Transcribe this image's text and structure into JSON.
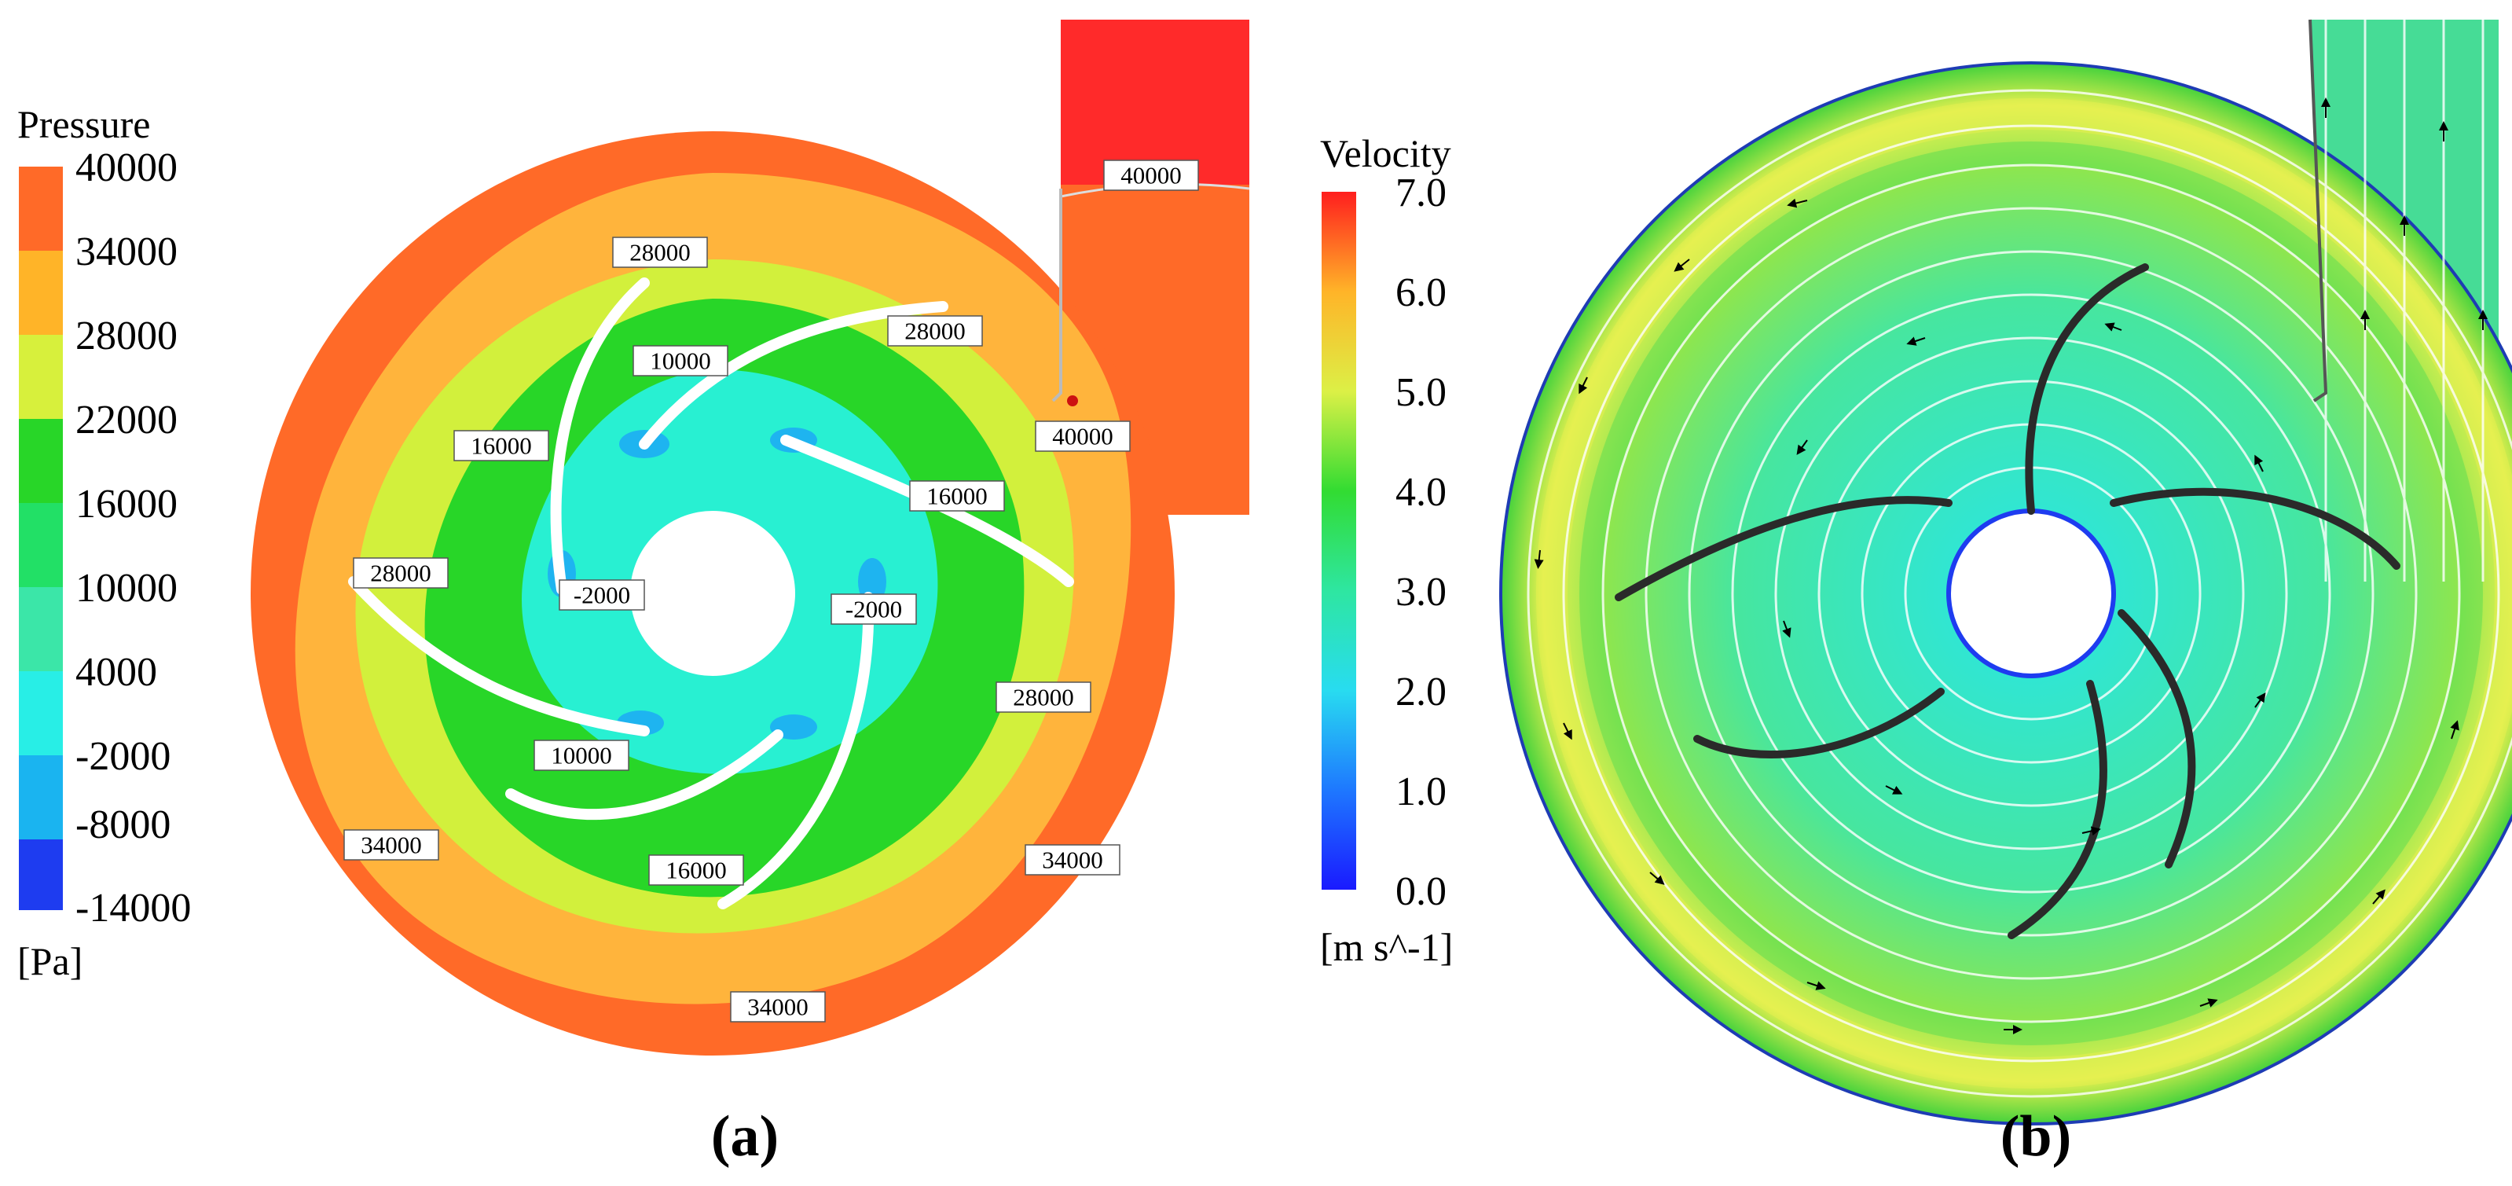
{
  "panel_a": {
    "caption": "(a)",
    "legend": {
      "title": "Pressure",
      "unit": "[Pa]",
      "ticks": [
        "40000",
        "34000",
        "28000",
        "22000",
        "16000",
        "10000",
        "4000",
        "-2000",
        "-8000",
        "-14000"
      ],
      "colors": [
        "#ff3a1e",
        "#ffb21e",
        "#e6f53c",
        "#33d61e",
        "#1ee61e",
        "#3be6a0",
        "#28f0e0",
        "#1ab4f0",
        "#1e64f0",
        "#1e2af0"
      ]
    },
    "contour_labels": [
      "40000",
      "28000",
      "28000",
      "10000",
      "40000",
      "16000",
      "16000",
      "28000",
      "-2000",
      "-2000",
      "28000",
      "10000",
      "34000",
      "34000",
      "16000",
      "34000"
    ]
  },
  "panel_b": {
    "caption": "(b)",
    "legend": {
      "title": "Velocity",
      "unit": "[m s^-1]",
      "ticks": [
        "7.0",
        "6.0",
        "5.0",
        "4.0",
        "3.0",
        "2.0",
        "1.0",
        "0.0"
      ]
    }
  },
  "colors": {
    "volute": "#ff6a28",
    "outlet_top": "#ff2a2a",
    "zone_34000": "#ffb43c",
    "zone_28000": "#d2f03c",
    "zone_22000": "#78e628",
    "zone_16000": "#22dc28",
    "zone_4000": "#28f0d2",
    "zone_neg2000": "#1eb4f0",
    "velocity_green": "#32d232",
    "velocity_cyan": "#32e6d2",
    "velocity_yellow": "#f0f050"
  }
}
